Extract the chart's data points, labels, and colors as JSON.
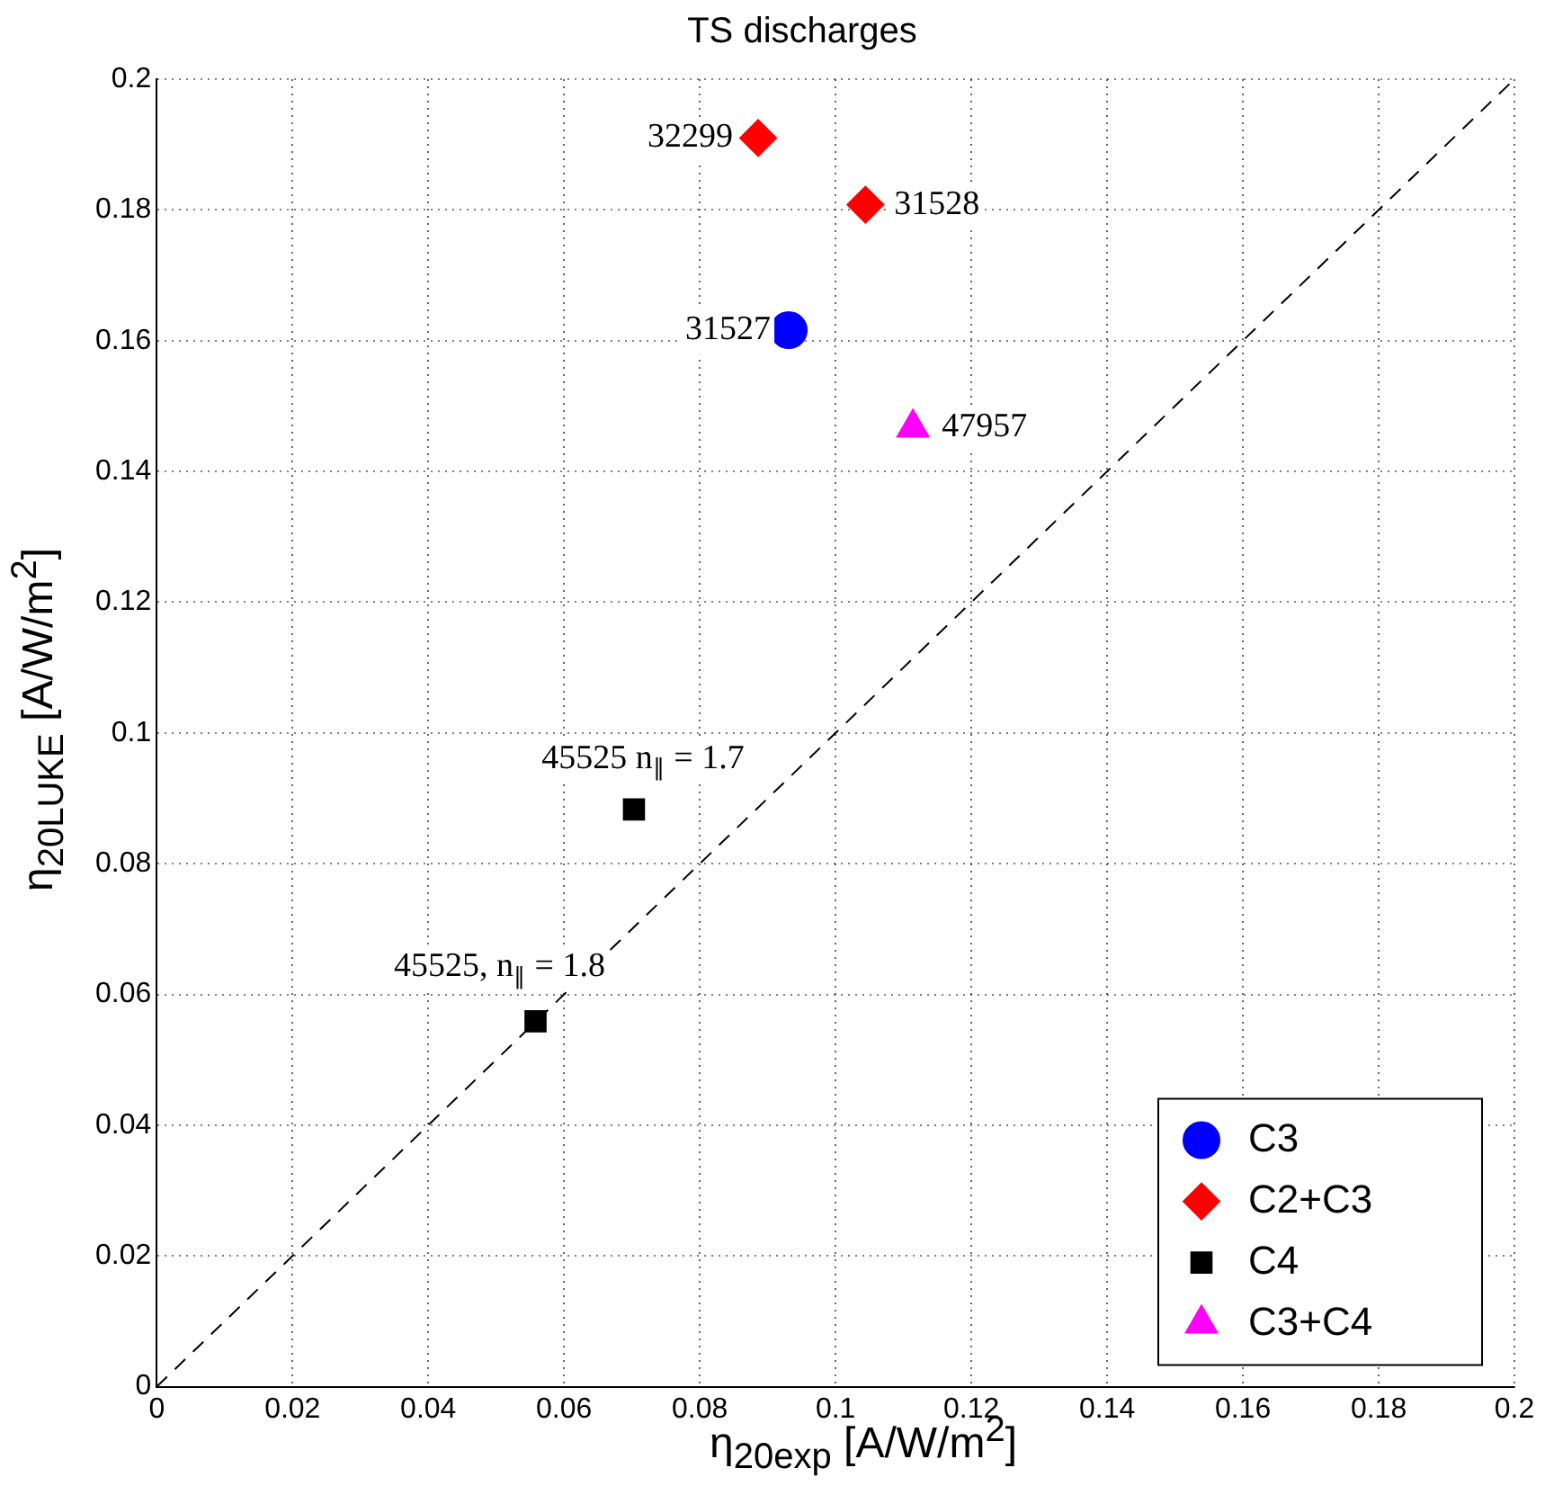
{
  "chart_data": {
    "type": "scatter",
    "title": "TS discharges",
    "xlabel": "η$_{20exp}$ [A/W/m$^{2}$]",
    "ylabel": "η$_{20LUKE}$ [A/W/m$^{2}$]",
    "xlim": [
      0,
      0.2
    ],
    "ylim": [
      0,
      0.2
    ],
    "xticks": [
      0,
      0.02,
      0.04,
      0.06,
      0.08,
      0.1,
      0.12,
      0.14,
      0.16,
      0.18,
      0.2
    ],
    "yticks": [
      0,
      0.02,
      0.04,
      0.06,
      0.08,
      0.1,
      0.12,
      0.14,
      0.16,
      0.18,
      0.2
    ],
    "grid": true,
    "legend": "bottom right",
    "series": [
      {
        "name": "C3",
        "color": "#0000ff",
        "marker": "circle",
        "x": [
          0.0931
        ],
        "values": [
          0.1616
        ]
      },
      {
        "name": "C2+C3",
        "color": "#ff0000",
        "marker": "diamond",
        "x": [
          0.0886,
          0.1044
        ],
        "values": [
          0.191,
          0.1808
        ]
      },
      {
        "name": "C4",
        "color": "#000000",
        "marker": "square",
        "x": [
          0.0703,
          0.0558
        ],
        "values": [
          0.0883,
          0.0559
        ]
      },
      {
        "name": "C3+C4",
        "color": "#ff00ff",
        "marker": "triangle",
        "x": [
          0.1114
        ],
        "values": [
          0.1467
        ]
      },
      {
        "type": "line",
        "color": "#000000",
        "line_style": "dashed",
        "marker": "none",
        "x": [
          0,
          0.2
        ],
        "values": [
          0,
          0.2
        ]
      }
    ],
    "annotations": [
      {
        "text": "32299",
        "x": 0.0886,
        "y": 0.191
      },
      {
        "text": "31528",
        "x": 0.1044,
        "y": 0.1808
      },
      {
        "text": "31527",
        "x": 0.0931,
        "y": 0.1616
      },
      {
        "text": "47957",
        "x": 0.1114,
        "y": 0.1467
      },
      {
        "text": "45525 n$_{∥}$ = 1.7",
        "x": 0.0703,
        "y": 0.0883
      },
      {
        "text": "45525, n$_{∥}$ = 1.8",
        "x": 0.0558,
        "y": 0.0559
      }
    ]
  }
}
